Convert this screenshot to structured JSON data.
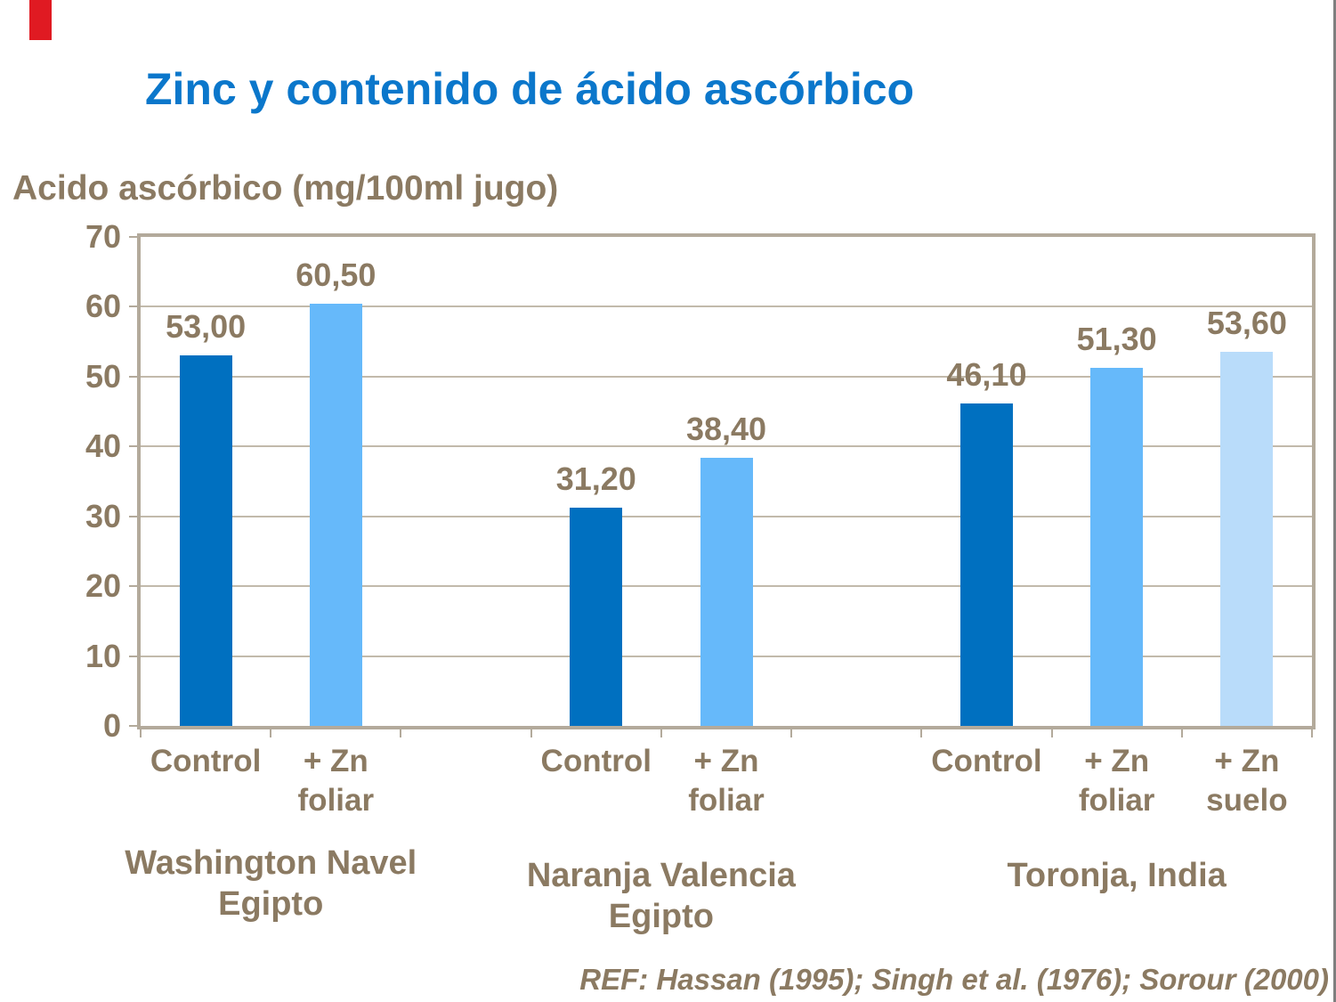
{
  "slide": {
    "title": "Zinc y contenido de ácido ascórbico",
    "footer": "REF: Hassan (1995); Singh et al. (1976); Sorour (2000)"
  },
  "colors": {
    "title_blue": "#0B77CB",
    "text_brown": "#8B7A62",
    "control_bar": "#0070C0",
    "zn_foliar_bar": "#66B9FA",
    "zn_suelo_bar": "#B9DCFA",
    "plot_border": "#B3AA9B",
    "gridline": "#C2BAAB",
    "accent_red": "#E01A22",
    "edge_line_gray": "#7F7F7F"
  },
  "chart_data": {
    "type": "bar",
    "title": "",
    "xlabel": "",
    "ylabel": "Acido ascórbico (mg/100ml jugo)",
    "ylim": [
      0,
      70
    ],
    "yticks": [
      0,
      10,
      20,
      30,
      40,
      50,
      60,
      70
    ],
    "grid": true,
    "legend": false,
    "decimal_style": "comma",
    "groups": [
      {
        "name": "Washington Navel Egipto",
        "name_lines": [
          "Washington Navel",
          "Egipto"
        ],
        "bars": [
          {
            "series": "Control",
            "category_lines": [
              "Control"
            ],
            "value": 53.0,
            "value_label": "53,00",
            "color_key": "control_bar"
          },
          {
            "series": "+ Zn foliar",
            "category_lines": [
              "+ Zn",
              "foliar"
            ],
            "value": 60.5,
            "value_label": "60,50",
            "color_key": "zn_foliar_bar"
          }
        ]
      },
      {
        "name": "Naranja Valencia Egipto",
        "name_lines": [
          "Naranja Valencia",
          "Egipto"
        ],
        "bars": [
          {
            "series": "Control",
            "category_lines": [
              "Control"
            ],
            "value": 31.2,
            "value_label": "31,20",
            "color_key": "control_bar"
          },
          {
            "series": "+ Zn foliar",
            "category_lines": [
              "+ Zn",
              "foliar"
            ],
            "value": 38.4,
            "value_label": "38,40",
            "color_key": "zn_foliar_bar"
          }
        ]
      },
      {
        "name": "Toronja, India",
        "name_lines": [
          "Toronja, India"
        ],
        "bars": [
          {
            "series": "Control",
            "category_lines": [
              "Control"
            ],
            "value": 46.1,
            "value_label": "46,10",
            "color_key": "control_bar"
          },
          {
            "series": "+ Zn foliar",
            "category_lines": [
              "+ Zn",
              "foliar"
            ],
            "value": 51.3,
            "value_label": "51,30",
            "color_key": "zn_foliar_bar"
          },
          {
            "series": "+ Zn suelo",
            "category_lines": [
              "+ Zn",
              "suelo"
            ],
            "value": 53.6,
            "value_label": "53,60",
            "color_key": "zn_suelo_bar"
          }
        ]
      }
    ]
  }
}
